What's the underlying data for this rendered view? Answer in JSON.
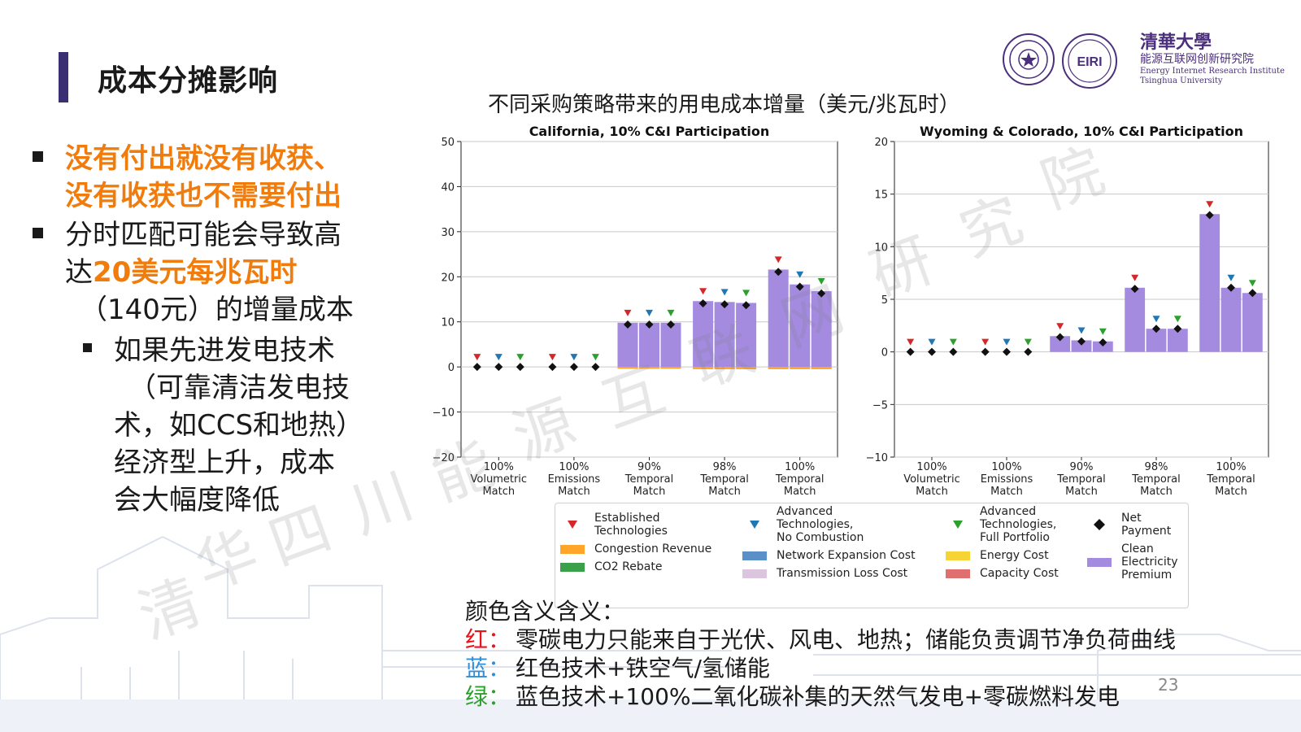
{
  "slide": {
    "title": "成本分摊影响",
    "page_number": "23"
  },
  "logo": {
    "university_cn": "清華大學",
    "institute_cn": "能源互联网创新研究院",
    "institute_en": "Energy Internet Research Institute",
    "university_en": "Tsinghua University",
    "badge_text": "EIRI"
  },
  "bullets": {
    "b1_line1": "没有付出就没有收获、",
    "b1_line2": "没有收获也不需要付出",
    "b2_line1": "分时匹配可能会导致高",
    "b2_line2_prefix": "达",
    "b2_line2_highlight": "20美元每兆瓦时",
    "b2_line3": "（140元）的增量成本",
    "b3_line1": "如果先进发电技术",
    "b3_line2": "（可靠清洁发电技",
    "b3_line3": "术，如CCS和地热）",
    "b3_line4": "经济型上升，成本",
    "b3_line5": "会大幅度降低"
  },
  "chart_title": "不同采购策略带来的用电成本增量（美元/兆瓦时）",
  "watermark": [
    "清",
    "华",
    "四",
    "川",
    "能",
    "源",
    "互",
    "联",
    "网",
    "研",
    "究",
    "院"
  ],
  "colors": {
    "accent_bar": "#3b2f73",
    "highlight_orange": "#f07c0d",
    "premium_purple": "#a48be0",
    "congestion_orange": "#ffa52a",
    "co2_green": "#3aa14a",
    "network_blue": "#5b8fc7",
    "transmission_pink": "#dcc6df",
    "energy_yellow": "#f7d436",
    "capacity_red": "#e07070",
    "marker_red": "#d62728",
    "marker_blue": "#1f77b4",
    "marker_green": "#2ca02c",
    "note_red": "#e8141b",
    "note_blue": "#2f8fd8",
    "note_green": "#2ca02c"
  },
  "chart_data": [
    {
      "type": "bar",
      "title": "California, 10% C&I Participation",
      "ylim": [
        -20,
        50
      ],
      "yticks": [
        -20,
        -10,
        0,
        10,
        20,
        30,
        40,
        50
      ],
      "ytick_labels": [
        "−20",
        "−10",
        "0",
        "10",
        "20",
        "30",
        "40",
        "50"
      ],
      "groups": [
        "100%\nVolumetric\nMatch",
        "100%\nEmissions\nMatch",
        "90%\nTemporal\nMatch",
        "98%\nTemporal\nMatch",
        "100%\nTemporal\nMatch"
      ],
      "bars_per_group": [
        "Established Technologies",
        "Advanced Technologies, No Combustion",
        "Advanced Technologies, Full Portfolio"
      ],
      "clean_electricity_premium": [
        [
          0,
          0,
          0
        ],
        [
          0,
          0,
          0
        ],
        [
          9.8,
          9.8,
          9.8
        ],
        [
          14.6,
          14.4,
          14.2
        ],
        [
          21.6,
          18.3,
          16.8
        ]
      ],
      "congestion_revenue": [
        [
          0,
          0,
          0
        ],
        [
          0,
          0,
          0
        ],
        [
          -0.4,
          -0.4,
          -0.4
        ],
        [
          -0.5,
          -0.5,
          -0.5
        ],
        [
          -0.5,
          -0.5,
          -0.5
        ]
      ],
      "net_payment": [
        [
          0,
          0,
          0
        ],
        [
          0,
          0,
          0
        ],
        [
          9.4,
          9.4,
          9.4
        ],
        [
          14.1,
          13.9,
          13.7
        ],
        [
          21.1,
          17.8,
          16.3
        ]
      ]
    },
    {
      "type": "bar",
      "title": "Wyoming & Colorado, 10% C&I Participation",
      "ylim": [
        -10,
        20
      ],
      "yticks": [
        -10,
        -5,
        0,
        5,
        10,
        15,
        20
      ],
      "ytick_labels": [
        "−10",
        "−5",
        "0",
        "5",
        "10",
        "15",
        "20"
      ],
      "groups": [
        "100%\nVolumetric\nMatch",
        "100%\nEmissions\nMatch",
        "90%\nTemporal\nMatch",
        "98%\nTemporal\nMatch",
        "100%\nTemporal\nMatch"
      ],
      "bars_per_group": [
        "Established Technologies",
        "Advanced Technologies, No Combustion",
        "Advanced Technologies, Full Portfolio"
      ],
      "clean_electricity_premium": [
        [
          0,
          0,
          0
        ],
        [
          0,
          0,
          0
        ],
        [
          1.5,
          1.1,
          1.0
        ],
        [
          6.1,
          2.2,
          2.2
        ],
        [
          13.1,
          6.1,
          5.6
        ]
      ],
      "congestion_revenue": [
        [
          0,
          0,
          0
        ],
        [
          0,
          0,
          0
        ],
        [
          0,
          0,
          0
        ],
        [
          0,
          0,
          0
        ],
        [
          0,
          0,
          0
        ]
      ],
      "net_payment": [
        [
          0,
          0,
          0
        ],
        [
          0,
          0,
          0
        ],
        [
          1.4,
          1.0,
          0.9
        ],
        [
          6.0,
          2.2,
          2.2
        ],
        [
          13.0,
          6.1,
          5.6
        ]
      ]
    }
  ],
  "legend": {
    "established": "Established\nTechnologies",
    "adv_no_comb": "Advanced\nTechnologies,\nNo Combustion",
    "adv_full": "Advanced\nTechnologies,\nFull Portfolio",
    "net_payment": "Net\nPayment",
    "congestion": "Congestion Revenue",
    "network": "Network Expansion Cost",
    "energy": "Energy Cost",
    "premium": "Clean\nElectricity\nPremium",
    "co2": "CO2 Rebate",
    "transmission": "Transmission Loss Cost",
    "capacity": "Capacity Cost"
  },
  "notes": {
    "heading": "颜色含义含义：",
    "red_label": "红：",
    "red_text": "零碳电力只能来自于光伏、风电、地热；储能负责调节净负荷曲线",
    "blue_label": "蓝：",
    "blue_text": "红色技术+铁空气/氢储能",
    "green_label": "绿：",
    "green_text": "蓝色技术+100%二氧化碳补集的天然气发电+零碳燃料发电"
  }
}
